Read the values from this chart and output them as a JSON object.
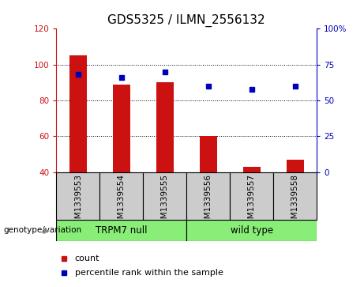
{
  "title": "GDS5325 / ILMN_2556132",
  "categories": [
    "GSM1339553",
    "GSM1339554",
    "GSM1339555",
    "GSM1339556",
    "GSM1339557",
    "GSM1339558"
  ],
  "bar_values": [
    105,
    89,
    90,
    60,
    43,
    47
  ],
  "scatter_values_pct": [
    68,
    66,
    70,
    60,
    58,
    60
  ],
  "bar_baseline": 40,
  "ylim_left": [
    40,
    120
  ],
  "ylim_right": [
    0,
    100
  ],
  "left_yticks": [
    40,
    60,
    80,
    100,
    120
  ],
  "right_yticks": [
    0,
    25,
    50,
    75,
    100
  ],
  "right_yticklabels": [
    "0",
    "25",
    "50",
    "75",
    "100%"
  ],
  "bar_color": "#cc1111",
  "scatter_color": "#0000bb",
  "group1_label": "TRPM7 null",
  "group2_label": "wild type",
  "group1_indices": [
    0,
    1,
    2
  ],
  "group2_indices": [
    3,
    4,
    5
  ],
  "group_bg_color": "#88ee77",
  "tick_bg_color": "#cccccc",
  "legend_count_label": "count",
  "legend_pct_label": "percentile rank within the sample",
  "xlabel_label": "genotype/variation",
  "title_fontsize": 11,
  "tick_fontsize": 7.5,
  "label_fontsize": 8
}
